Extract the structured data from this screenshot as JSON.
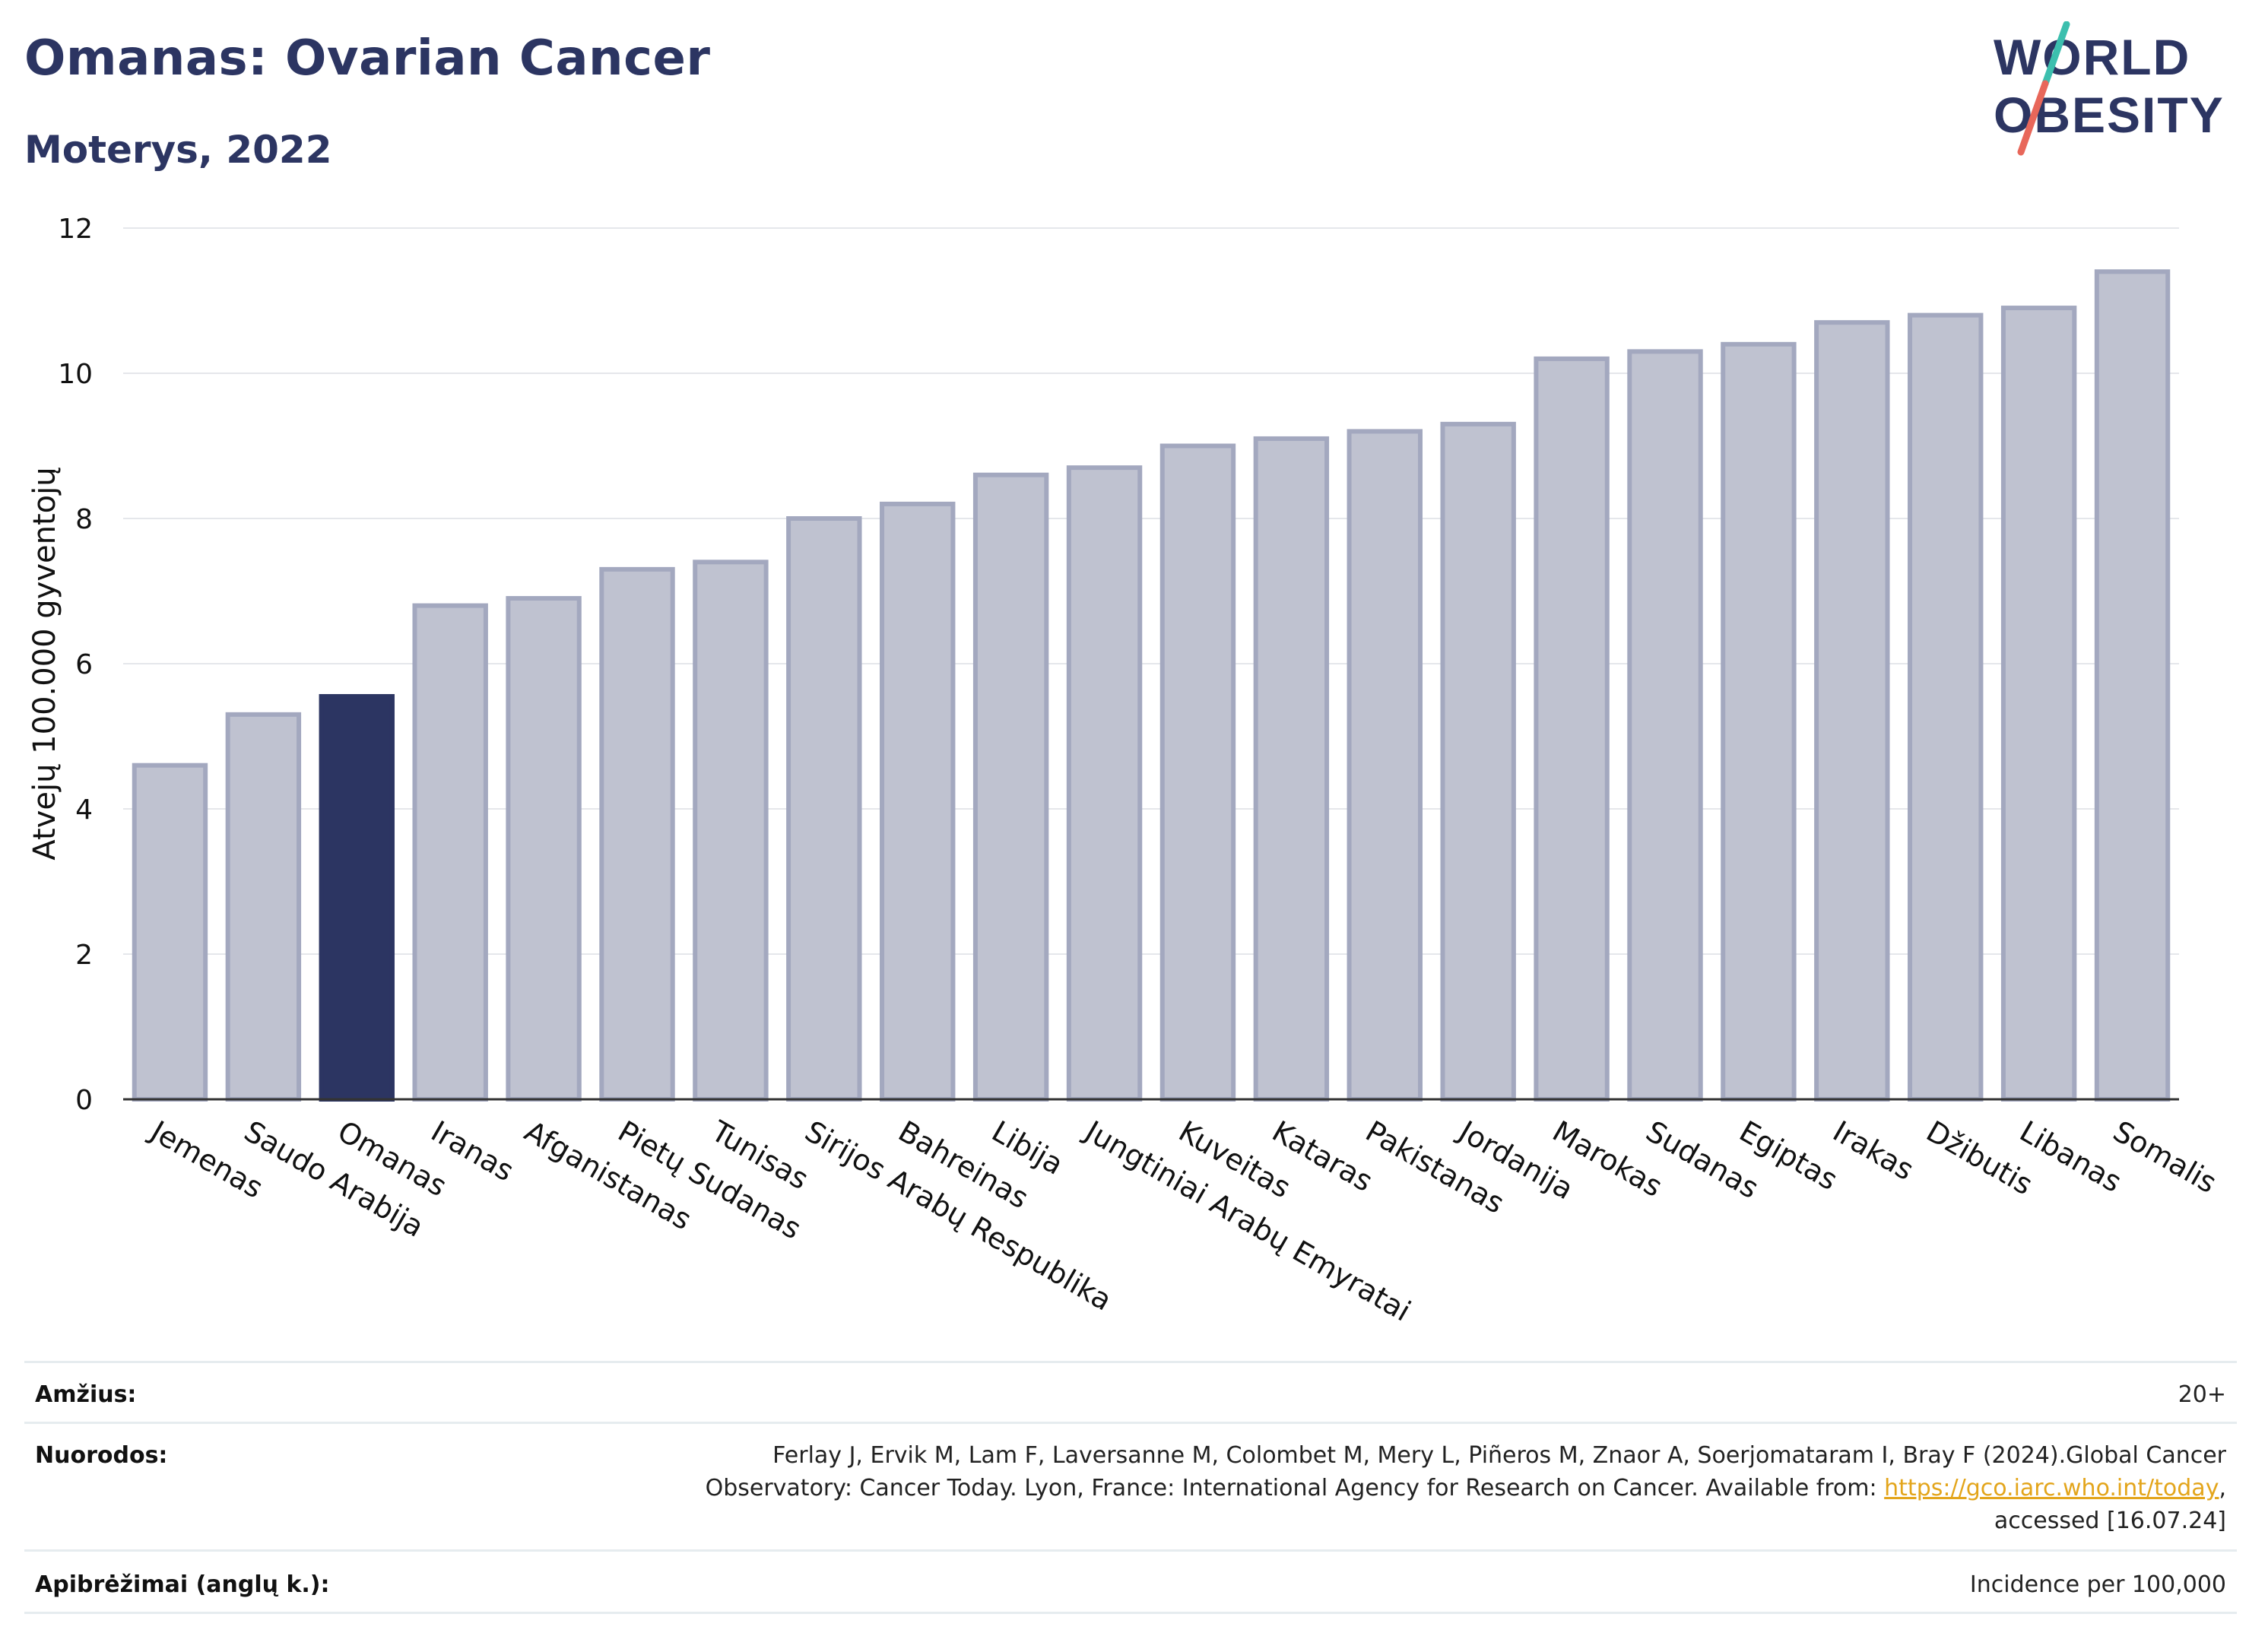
{
  "header": {
    "title": "Omanas: Ovarian Cancer",
    "subtitle": "Moterys, 2022"
  },
  "logo": {
    "line1": "WORLD",
    "line2": "OBESITY",
    "colors": {
      "text": "#2c3562",
      "slash_top": "#3cbfae",
      "slash_bottom": "#e8675a"
    }
  },
  "chart_data": {
    "type": "bar",
    "ylabel": "Atvejų 100.000 gyventojų",
    "ylim": [
      0,
      12
    ],
    "yticks": [
      0,
      2,
      4,
      6,
      8,
      10,
      12
    ],
    "grid": true,
    "highlight_category": "Omanas",
    "colors": {
      "bar": "#bfc2d0",
      "bar_border": "#a3a8bf",
      "highlight": "#2c3562"
    },
    "categories": [
      "Jemenas",
      "Saudo Arabija",
      "Omanas",
      "Iranas",
      "Afganistanas",
      "Pietų Sudanas",
      "Tunisas",
      "Sirijos Arabų Respublika",
      "Bahreinas",
      "Libija",
      "Jungtiniai Arabų Emyratai",
      "Kuveitas",
      "Kataras",
      "Pakistanas",
      "Jordanija",
      "Marokas",
      "Sudanas",
      "Egiptas",
      "Irakas",
      "Džibutis",
      "Libanas",
      "Somalis"
    ],
    "values": [
      4.6,
      5.3,
      5.55,
      6.8,
      6.9,
      7.3,
      7.4,
      8.0,
      8.2,
      8.6,
      8.7,
      9.0,
      9.1,
      9.2,
      9.3,
      10.2,
      10.3,
      10.4,
      10.7,
      10.8,
      10.9,
      11.4
    ]
  },
  "info": {
    "age_label": "Amžius:",
    "age_value": "20+",
    "refs_label": "Nuorodos:",
    "refs_line1": "Ferlay J, Ervik M, Lam F, Laversanne M, Colombet M, Mery L, Piñeros M, Znaor A, Soerjomataram I, Bray F (2024).Global Cancer",
    "refs_line2_pre": "Observatory: Cancer Today. Lyon, France: International Agency for Research on Cancer. Available from: ",
    "refs_link": "https://gco.iarc.who.int/today",
    "refs_line2_post": ",",
    "refs_line3": "accessed [16.07.24]",
    "def_label": "Apibrėžimai (anglų k.):",
    "def_value": "Incidence per 100,000"
  }
}
